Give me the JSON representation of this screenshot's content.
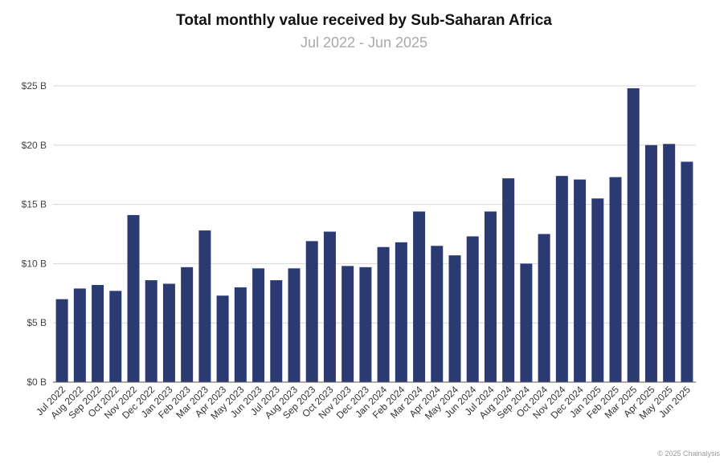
{
  "chart_data": {
    "type": "bar",
    "title": "Total monthly value received by Sub-Saharan Africa",
    "subtitle": "Jul 2022 - Jun 2025",
    "xlabel": "",
    "ylabel": "",
    "ylim": [
      0,
      25
    ],
    "ytick_values": [
      0,
      5,
      10,
      15,
      20,
      25
    ],
    "ytick_labels": [
      "$0 B",
      "$5 B",
      "$10 B",
      "$15 B",
      "$20 B",
      "$25 B"
    ],
    "grid": true,
    "bar_color": "#2b3a73",
    "categories": [
      "Jul 2022",
      "Aug 2022",
      "Sep 2022",
      "Oct 2022",
      "Nov 2022",
      "Dec 2022",
      "Jan 2023",
      "Feb 2023",
      "Mar 2023",
      "Apr 2023",
      "May 2023",
      "Jun 2023",
      "Jul 2023",
      "Aug 2023",
      "Sep 2023",
      "Oct 2023",
      "Nov 2023",
      "Dec 2023",
      "Jan 2024",
      "Feb 2024",
      "Mar 2024",
      "Apr 2024",
      "May 2024",
      "Jun 2024",
      "Jul 2024",
      "Aug 2024",
      "Sep 2024",
      "Oct 2024",
      "Nov 2024",
      "Dec 2024",
      "Jan 2025",
      "Feb 2025",
      "Mar 2025",
      "Apr 2025",
      "May 2025",
      "Jun 2025"
    ],
    "values": [
      7.0,
      7.9,
      8.2,
      7.7,
      14.1,
      8.6,
      8.3,
      9.7,
      12.8,
      7.3,
      8.0,
      9.6,
      8.6,
      9.6,
      11.9,
      12.7,
      9.8,
      9.7,
      11.4,
      11.8,
      14.4,
      11.5,
      10.7,
      12.3,
      14.4,
      17.2,
      10.0,
      12.5,
      17.4,
      17.1,
      15.5,
      17.3,
      24.8,
      20.0,
      20.1,
      18.6
    ]
  },
  "footer": {
    "credit": "© 2025 Chainalysis"
  }
}
